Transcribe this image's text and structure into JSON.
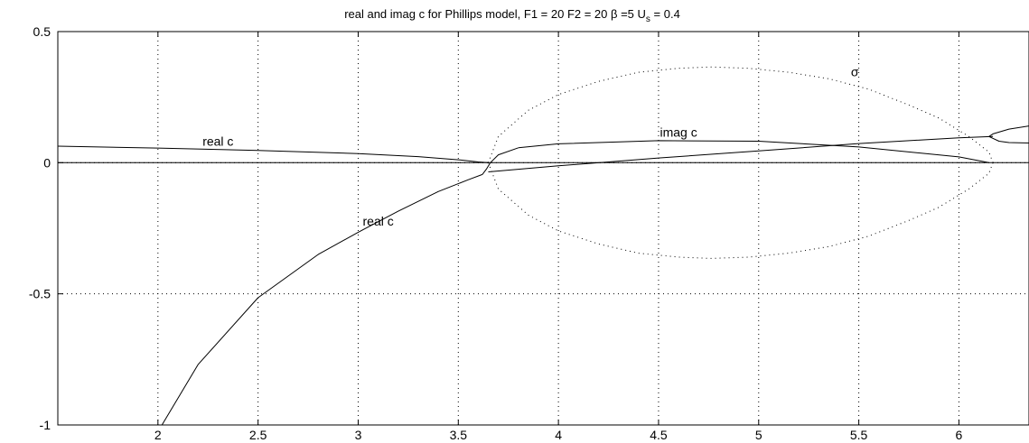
{
  "chart_data": {
    "type": "line",
    "title": {
      "main": "real and imag c for Phillips model, F1 = 20   F2 = 20  β =5   U",
      "sub": "s",
      "tail": " = 0.4"
    },
    "xlabel": "",
    "ylabel": "",
    "xlim": [
      1.5,
      6.35
    ],
    "ylim": [
      -1,
      0.5
    ],
    "x_ticks": [
      2,
      2.5,
      3,
      3.5,
      4,
      4.5,
      5,
      5.5,
      6
    ],
    "x_tick_labels": [
      "2",
      "2.5",
      "3",
      "3.5",
      "4",
      "4.5",
      "5",
      "5.5",
      "6"
    ],
    "y_ticks": [
      -1,
      -0.5,
      0,
      0.5
    ],
    "y_tick_labels": [
      "-1",
      "-0.5",
      "0",
      "0.5"
    ],
    "grid": true,
    "annotations": [
      {
        "text": "real c",
        "x": 2.3,
        "y": 0.065
      },
      {
        "text": "real c",
        "x": 3.1,
        "y": -0.24
      },
      {
        "text": "imag c",
        "x": 4.6,
        "y": 0.1
      },
      {
        "text": "σ",
        "x": 5.48,
        "y": 0.33
      }
    ],
    "series": [
      {
        "style": "solid",
        "x": [
          1.5,
          2.0,
          2.5,
          3.0,
          3.3,
          3.5,
          3.6,
          3.65
        ],
        "y": [
          0.063,
          0.056,
          0.047,
          0.035,
          0.023,
          0.011,
          0.003,
          0.0
        ]
      },
      {
        "style": "solid",
        "x": [
          2.02,
          2.2,
          2.5,
          2.8,
          3.0,
          3.2,
          3.4,
          3.55,
          3.62
        ],
        "y": [
          -1.0,
          -0.77,
          -0.515,
          -0.35,
          -0.265,
          -0.185,
          -0.11,
          -0.065,
          -0.045
        ]
      },
      {
        "style": "solid",
        "x": [
          3.62,
          3.64,
          3.66,
          3.7,
          3.8
        ],
        "y": [
          -0.045,
          -0.025,
          0.0,
          0.03,
          0.057
        ]
      },
      {
        "style": "solid",
        "x": [
          3.65,
          4.0,
          4.5,
          5.0,
          5.5,
          6.0,
          6.17
        ],
        "y": [
          -0.035,
          -0.012,
          0.018,
          0.045,
          0.073,
          0.095,
          0.1
        ]
      },
      {
        "style": "solid",
        "x": [
          3.8,
          4.0,
          4.5,
          5.0,
          5.5,
          6.0,
          6.15
        ],
        "y": [
          0.057,
          0.072,
          0.084,
          0.082,
          0.06,
          0.022,
          0.0
        ]
      },
      {
        "style": "solid",
        "x": [
          6.15,
          6.17,
          6.25,
          6.35
        ],
        "y": [
          0.1,
          0.11,
          0.128,
          0.14
        ]
      },
      {
        "style": "solid",
        "x": [
          6.15,
          6.2,
          6.25,
          6.35
        ],
        "y": [
          0.1,
          0.082,
          0.077,
          0.075
        ]
      },
      {
        "style": "solid",
        "x": [
          1.5,
          6.35
        ],
        "y": [
          0.0,
          0.0
        ]
      },
      {
        "style": "dotted",
        "x": [
          3.65,
          3.7,
          3.85,
          4.0,
          4.2,
          4.4,
          4.6,
          4.76,
          4.95,
          5.15,
          5.35,
          5.55,
          5.75,
          5.9,
          6.05,
          6.15,
          6.17
        ],
        "y": [
          0.0,
          0.1,
          0.2,
          0.26,
          0.31,
          0.345,
          0.36,
          0.365,
          0.36,
          0.345,
          0.32,
          0.28,
          0.22,
          0.17,
          0.1,
          0.04,
          0.0
        ]
      },
      {
        "style": "dotted",
        "x": [
          3.65,
          3.7,
          3.85,
          4.0,
          4.2,
          4.4,
          4.6,
          4.76,
          4.95,
          5.15,
          5.35,
          5.55,
          5.75,
          5.9,
          6.05,
          6.15,
          6.17
        ],
        "y": [
          0.0,
          -0.1,
          -0.2,
          -0.26,
          -0.31,
          -0.345,
          -0.36,
          -0.365,
          -0.36,
          -0.345,
          -0.32,
          -0.28,
          -0.22,
          -0.17,
          -0.1,
          -0.04,
          0.0
        ]
      }
    ]
  }
}
